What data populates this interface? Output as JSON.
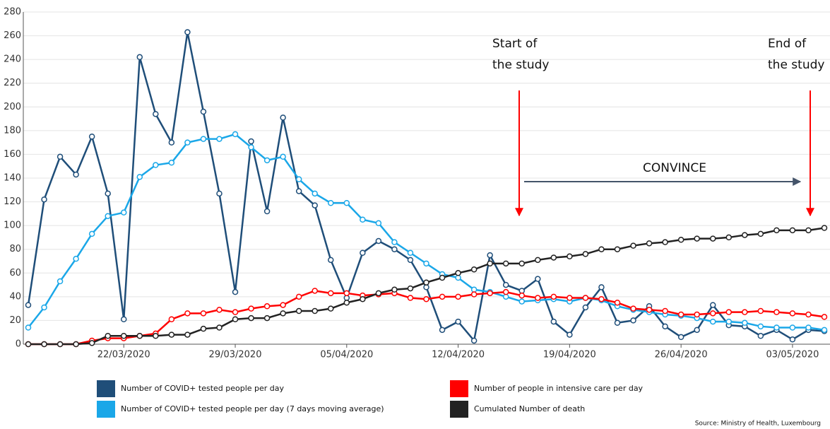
{
  "chart_data": {
    "type": "line",
    "categories": [
      null,
      null,
      null,
      null,
      null,
      null,
      "22/03/2020",
      null,
      null,
      null,
      null,
      null,
      null,
      "29/03/2020",
      null,
      null,
      null,
      null,
      null,
      null,
      "05/04/2020",
      null,
      null,
      null,
      null,
      null,
      null,
      "12/04/2020",
      null,
      null,
      null,
      null,
      null,
      null,
      "19/04/2020",
      null,
      null,
      null,
      null,
      null,
      null,
      "26/04/2020",
      null,
      null,
      null,
      null,
      null,
      null,
      "03/05/2020",
      null,
      null
    ],
    "series": [
      {
        "name": "Number of COVID+ tested people per day",
        "color": "#1f4e79",
        "values": [
          33,
          122,
          158,
          143,
          175,
          127,
          21,
          242,
          194,
          170,
          263,
          196,
          127,
          44,
          171,
          112,
          191,
          129,
          117,
          71,
          39,
          77,
          87,
          80,
          71,
          48,
          12,
          19,
          3,
          75,
          50,
          45,
          55,
          19,
          8,
          31,
          48,
          18,
          20,
          32,
          15,
          6,
          12,
          33,
          16,
          15,
          7,
          12,
          4,
          12,
          11
        ]
      },
      {
        "name": "Number of COVID+ tested people per day (7 days moving average)",
        "color": "#1aa7e8",
        "values": [
          14,
          31,
          53,
          72,
          93,
          108,
          111,
          141,
          151,
          153,
          170,
          173,
          173,
          177,
          166,
          155,
          158,
          139,
          127,
          119,
          119,
          105,
          102,
          86,
          77,
          68,
          59,
          56,
          46,
          44,
          40,
          36,
          37,
          38,
          36,
          39,
          37,
          32,
          29,
          27,
          25,
          24,
          22,
          19,
          19,
          18,
          15,
          14,
          14,
          14,
          12
        ]
      },
      {
        "name": "Number of people in intensive care per day",
        "color": "#ff0000",
        "values": [
          0,
          0,
          0,
          0,
          3,
          5,
          5,
          7,
          9,
          21,
          26,
          26,
          29,
          27,
          30,
          32,
          33,
          40,
          45,
          43,
          43,
          41,
          42,
          43,
          39,
          38,
          40,
          40,
          42,
          43,
          44,
          41,
          39,
          40,
          39,
          39,
          38,
          35,
          30,
          29,
          28,
          25,
          25,
          26,
          27,
          27,
          28,
          27,
          26,
          25,
          23
        ]
      },
      {
        "name": "Cumulated Number of death",
        "color": "#222222",
        "values": [
          0,
          0,
          0,
          0,
          1,
          7,
          7,
          7,
          7,
          8,
          8,
          13,
          14,
          21,
          22,
          22,
          26,
          28,
          28,
          30,
          35,
          38,
          43,
          46,
          47,
          52,
          56,
          60,
          63,
          68,
          68,
          68,
          71,
          73,
          74,
          76,
          80,
          80,
          83,
          85,
          86,
          88,
          89,
          89,
          90,
          92,
          93,
          96,
          96,
          96,
          98
        ]
      }
    ],
    "ylim": [
      0,
      280
    ],
    "yticks": [
      0,
      20,
      40,
      60,
      80,
      100,
      120,
      140,
      160,
      180,
      200,
      220,
      240,
      260,
      280
    ],
    "grid": true,
    "annotations": {
      "start": [
        "Start of",
        "the study"
      ],
      "end": [
        "End of",
        "the study"
      ],
      "span": "CONVINCE"
    },
    "source": "Source:  Ministry of Health, Luxembourg"
  }
}
